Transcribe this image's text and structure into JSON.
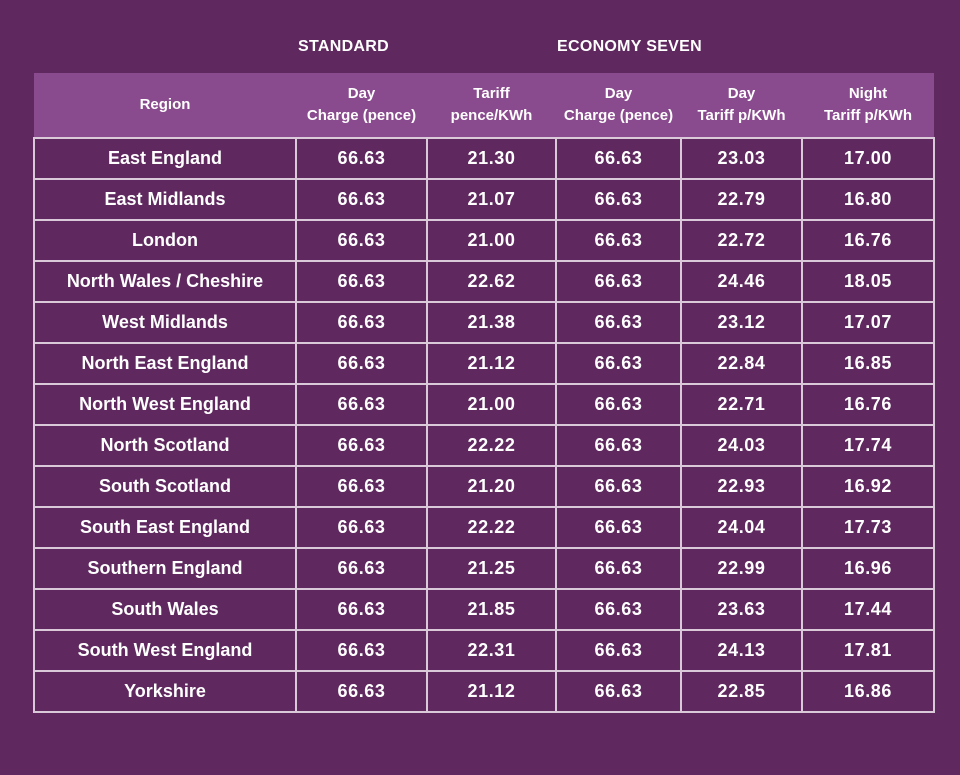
{
  "groups": {
    "standard": "STANDARD",
    "economy_seven": "ECONOMY SEVEN"
  },
  "columns": [
    {
      "line1": "Region",
      "line2": ""
    },
    {
      "line1": "Day",
      "line2": "Charge (pence)"
    },
    {
      "line1": "Tariff",
      "line2": "pence/KWh"
    },
    {
      "line1": "Day",
      "line2": "Charge (pence)"
    },
    {
      "line1": "Day",
      "line2": "Tariff p/KWh"
    },
    {
      "line1": "Night",
      "line2": "Tariff p/KWh"
    }
  ],
  "rows": [
    {
      "region": "East England",
      "std_day_charge": "66.63",
      "std_tariff": "21.30",
      "e7_day_charge": "66.63",
      "e7_day_tariff": "23.03",
      "e7_night_tariff": "17.00"
    },
    {
      "region": "East Midlands",
      "std_day_charge": "66.63",
      "std_tariff": "21.07",
      "e7_day_charge": "66.63",
      "e7_day_tariff": "22.79",
      "e7_night_tariff": "16.80"
    },
    {
      "region": "London",
      "std_day_charge": "66.63",
      "std_tariff": "21.00",
      "e7_day_charge": "66.63",
      "e7_day_tariff": "22.72",
      "e7_night_tariff": "16.76"
    },
    {
      "region": "North Wales / Cheshire",
      "std_day_charge": "66.63",
      "std_tariff": "22.62",
      "e7_day_charge": "66.63",
      "e7_day_tariff": "24.46",
      "e7_night_tariff": "18.05"
    },
    {
      "region": "West Midlands",
      "std_day_charge": "66.63",
      "std_tariff": "21.38",
      "e7_day_charge": "66.63",
      "e7_day_tariff": "23.12",
      "e7_night_tariff": "17.07"
    },
    {
      "region": "North East England",
      "std_day_charge": "66.63",
      "std_tariff": "21.12",
      "e7_day_charge": "66.63",
      "e7_day_tariff": "22.84",
      "e7_night_tariff": "16.85"
    },
    {
      "region": "North West England",
      "std_day_charge": "66.63",
      "std_tariff": "21.00",
      "e7_day_charge": "66.63",
      "e7_day_tariff": "22.71",
      "e7_night_tariff": "16.76"
    },
    {
      "region": "North Scotland",
      "std_day_charge": "66.63",
      "std_tariff": "22.22",
      "e7_day_charge": "66.63",
      "e7_day_tariff": "24.03",
      "e7_night_tariff": "17.74"
    },
    {
      "region": "South Scotland",
      "std_day_charge": "66.63",
      "std_tariff": "21.20",
      "e7_day_charge": "66.63",
      "e7_day_tariff": "22.93",
      "e7_night_tariff": "16.92"
    },
    {
      "region": "South East England",
      "std_day_charge": "66.63",
      "std_tariff": "22.22",
      "e7_day_charge": "66.63",
      "e7_day_tariff": "24.04",
      "e7_night_tariff": "17.73"
    },
    {
      "region": "Southern England",
      "std_day_charge": "66.63",
      "std_tariff": "21.25",
      "e7_day_charge": "66.63",
      "e7_day_tariff": "22.99",
      "e7_night_tariff": "16.96"
    },
    {
      "region": "South Wales",
      "std_day_charge": "66.63",
      "std_tariff": "21.85",
      "e7_day_charge": "66.63",
      "e7_day_tariff": "23.63",
      "e7_night_tariff": "17.44"
    },
    {
      "region": "South West England",
      "std_day_charge": "66.63",
      "std_tariff": "22.31",
      "e7_day_charge": "66.63",
      "e7_day_tariff": "24.13",
      "e7_night_tariff": "17.81"
    },
    {
      "region": "Yorkshire",
      "std_day_charge": "66.63",
      "std_tariff": "21.12",
      "e7_day_charge": "66.63",
      "e7_day_tariff": "22.85",
      "e7_night_tariff": "16.86"
    }
  ],
  "colors": {
    "background": "#5f285f",
    "header_background": "#8a4a8e",
    "grid_lines": "#d9c9d9",
    "text": "#ffffff"
  }
}
